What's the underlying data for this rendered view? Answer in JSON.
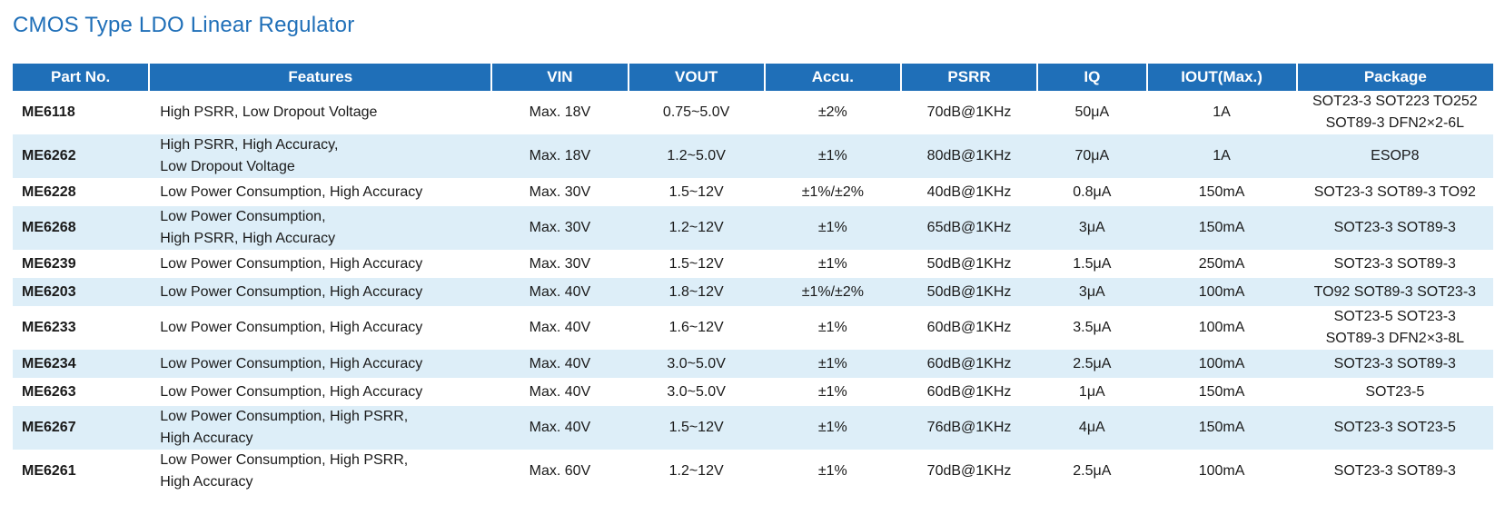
{
  "title": "CMOS Type LDO Linear Regulator",
  "accent_color": "#1f6fb8",
  "stripe_color": "#ddeef8",
  "columns": [
    "Part No.",
    "Features",
    "VIN",
    "VOUT",
    "Accu.",
    "PSRR",
    "IQ",
    "IOUT(Max.)",
    "Package"
  ],
  "rows": [
    {
      "part": "ME6118",
      "features": [
        "High PSRR, Low Dropout Voltage"
      ],
      "vin": "Max. 18V",
      "vout": "0.75~5.0V",
      "accu": "±2%",
      "psrr": "70dB@1KHz",
      "iq": "50μA",
      "iout": "1A",
      "package": [
        "SOT23-3 SOT223 TO252",
        "SOT89-3 DFN2×2-6L"
      ]
    },
    {
      "part": "ME6262",
      "features": [
        "High PSRR, High Accuracy,",
        "Low Dropout Voltage"
      ],
      "vin": "Max. 18V",
      "vout": "1.2~5.0V",
      "accu": "±1%",
      "psrr": "80dB@1KHz",
      "iq": "70μA",
      "iout": "1A",
      "package": [
        "ESOP8"
      ]
    },
    {
      "part": "ME6228",
      "features": [
        "Low Power Consumption, High Accuracy"
      ],
      "vin": "Max. 30V",
      "vout": "1.5~12V",
      "accu": "±1%/±2%",
      "psrr": "40dB@1KHz",
      "iq": "0.8μA",
      "iout": "150mA",
      "package": [
        "SOT23-3 SOT89-3 TO92"
      ]
    },
    {
      "part": "ME6268",
      "features": [
        "Low Power Consumption,",
        "High PSRR, High Accuracy"
      ],
      "vin": "Max. 30V",
      "vout": "1.2~12V",
      "accu": "±1%",
      "psrr": "65dB@1KHz",
      "iq": "3μA",
      "iout": "150mA",
      "package": [
        "SOT23-3 SOT89-3"
      ]
    },
    {
      "part": "ME6239",
      "features": [
        "Low Power Consumption, High Accuracy"
      ],
      "vin": "Max. 30V",
      "vout": "1.5~12V",
      "accu": "±1%",
      "psrr": "50dB@1KHz",
      "iq": "1.5μA",
      "iout": "250mA",
      "package": [
        "SOT23-3 SOT89-3"
      ]
    },
    {
      "part": "ME6203",
      "features": [
        "Low Power Consumption, High Accuracy"
      ],
      "vin": "Max. 40V",
      "vout": "1.8~12V",
      "accu": "±1%/±2%",
      "psrr": "50dB@1KHz",
      "iq": "3μA",
      "iout": "100mA",
      "package": [
        "TO92 SOT89-3 SOT23-3"
      ]
    },
    {
      "part": "ME6233",
      "features": [
        "Low Power Consumption, High Accuracy"
      ],
      "vin": "Max. 40V",
      "vout": "1.6~12V",
      "accu": "±1%",
      "psrr": "60dB@1KHz",
      "iq": "3.5μA",
      "iout": "100mA",
      "package": [
        "SOT23-5 SOT23-3",
        "SOT89-3 DFN2×3-8L"
      ]
    },
    {
      "part": "ME6234",
      "features": [
        "Low Power Consumption, High Accuracy"
      ],
      "vin": "Max. 40V",
      "vout": "3.0~5.0V",
      "accu": "±1%",
      "psrr": "60dB@1KHz",
      "iq": "2.5μA",
      "iout": "100mA",
      "package": [
        "SOT23-3 SOT89-3"
      ]
    },
    {
      "part": "ME6263",
      "features": [
        "Low Power Consumption, High Accuracy"
      ],
      "vin": "Max. 40V",
      "vout": "3.0~5.0V",
      "accu": "±1%",
      "psrr": "60dB@1KHz",
      "iq": "1μA",
      "iout": "150mA",
      "package": [
        "SOT23-5"
      ]
    },
    {
      "part": "ME6267",
      "features": [
        "Low Power Consumption, High PSRR,",
        "High Accuracy"
      ],
      "vin": "Max. 40V",
      "vout": "1.5~12V",
      "accu": "±1%",
      "psrr": "76dB@1KHz",
      "iq": "4μA",
      "iout": "150mA",
      "package": [
        "SOT23-3 SOT23-5"
      ]
    },
    {
      "part": "ME6261",
      "features": [
        "Low Power Consumption, High PSRR,",
        "High Accuracy"
      ],
      "vin": "Max. 60V",
      "vout": "1.2~12V",
      "accu": "±1%",
      "psrr": "70dB@1KHz",
      "iq": "2.5μA",
      "iout": "100mA",
      "package": [
        "SOT23-3 SOT89-3"
      ]
    }
  ]
}
